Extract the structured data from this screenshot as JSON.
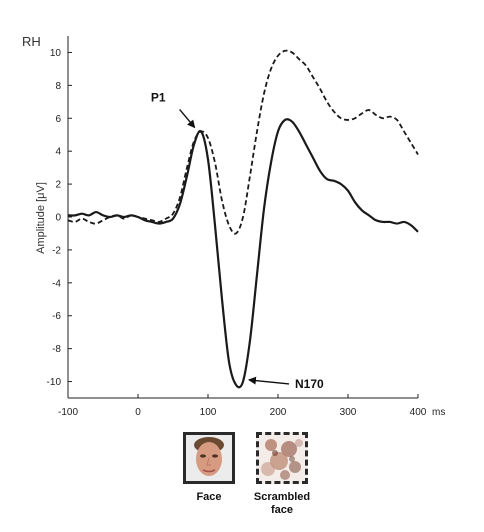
{
  "chart_data": {
    "type": "line",
    "hemisphere_label": "RH",
    "ylabel": "Amplitude [μV]",
    "x_unit": "ms",
    "xlim": [
      -100,
      400
    ],
    "ylim": [
      -11,
      11
    ],
    "x_ticks": [
      -100,
      0,
      100,
      200,
      300,
      400
    ],
    "x_tick_labels": [
      "-100",
      "0",
      "100",
      "200",
      "300",
      "400"
    ],
    "y_ticks": [
      -10,
      -8,
      -6,
      -4,
      -2,
      0,
      2,
      4,
      6,
      8,
      10
    ],
    "y_tick_labels": [
      "-10",
      "-8",
      "-6",
      "-4",
      "-2",
      "0",
      "2",
      "4",
      "6",
      "8",
      "10"
    ],
    "grid": false,
    "series": [
      {
        "name": "Face",
        "style": "solid",
        "color": "#1a1a1a",
        "points": [
          [
            -100,
            0.1
          ],
          [
            -90,
            0.1
          ],
          [
            -80,
            0.2
          ],
          [
            -70,
            0.1
          ],
          [
            -60,
            0.3
          ],
          [
            -50,
            0.1
          ],
          [
            -40,
            0.0
          ],
          [
            -30,
            0.1
          ],
          [
            -20,
            0.0
          ],
          [
            -10,
            0.1
          ],
          [
            0,
            0.0
          ],
          [
            10,
            -0.2
          ],
          [
            20,
            -0.3
          ],
          [
            30,
            -0.4
          ],
          [
            40,
            -0.3
          ],
          [
            50,
            -0.1
          ],
          [
            60,
            0.8
          ],
          [
            70,
            2.5
          ],
          [
            80,
            4.4
          ],
          [
            90,
            5.2
          ],
          [
            100,
            3.5
          ],
          [
            110,
            -0.5
          ],
          [
            120,
            -5.0
          ],
          [
            130,
            -8.8
          ],
          [
            140,
            -10.2
          ],
          [
            150,
            -10.0
          ],
          [
            160,
            -7.5
          ],
          [
            170,
            -3.5
          ],
          [
            180,
            0.5
          ],
          [
            190,
            3.3
          ],
          [
            200,
            5.2
          ],
          [
            210,
            5.9
          ],
          [
            220,
            5.8
          ],
          [
            230,
            5.2
          ],
          [
            240,
            4.4
          ],
          [
            250,
            3.6
          ],
          [
            260,
            2.8
          ],
          [
            270,
            2.3
          ],
          [
            280,
            2.2
          ],
          [
            290,
            2.0
          ],
          [
            300,
            1.6
          ],
          [
            310,
            0.9
          ],
          [
            320,
            0.4
          ],
          [
            330,
            0.1
          ],
          [
            340,
            -0.2
          ],
          [
            350,
            -0.3
          ],
          [
            360,
            -0.3
          ],
          [
            370,
            -0.4
          ],
          [
            380,
            -0.3
          ],
          [
            390,
            -0.5
          ],
          [
            400,
            -0.9
          ]
        ]
      },
      {
        "name": "Scrambled face",
        "style": "dashed",
        "color": "#1a1a1a",
        "points": [
          [
            -100,
            -0.2
          ],
          [
            -90,
            -0.3
          ],
          [
            -80,
            -0.1
          ],
          [
            -70,
            -0.3
          ],
          [
            -60,
            -0.4
          ],
          [
            -50,
            -0.2
          ],
          [
            -40,
            0.0
          ],
          [
            -30,
            0.1
          ],
          [
            -20,
            -0.1
          ],
          [
            -10,
            0.1
          ],
          [
            0,
            0.0
          ],
          [
            10,
            -0.1
          ],
          [
            20,
            -0.2
          ],
          [
            30,
            -0.3
          ],
          [
            40,
            -0.1
          ],
          [
            50,
            0.2
          ],
          [
            60,
            1.2
          ],
          [
            70,
            3.0
          ],
          [
            80,
            4.6
          ],
          [
            90,
            5.2
          ],
          [
            100,
            4.8
          ],
          [
            110,
            3.3
          ],
          [
            120,
            1.0
          ],
          [
            130,
            -0.5
          ],
          [
            140,
            -1.0
          ],
          [
            150,
            0.0
          ],
          [
            160,
            2.5
          ],
          [
            170,
            5.2
          ],
          [
            180,
            7.5
          ],
          [
            190,
            9.0
          ],
          [
            200,
            9.8
          ],
          [
            210,
            10.1
          ],
          [
            220,
            10.0
          ],
          [
            230,
            9.6
          ],
          [
            240,
            9.2
          ],
          [
            250,
            8.5
          ],
          [
            260,
            7.8
          ],
          [
            270,
            7.0
          ],
          [
            280,
            6.4
          ],
          [
            290,
            6.0
          ],
          [
            300,
            5.9
          ],
          [
            310,
            6.0
          ],
          [
            320,
            6.3
          ],
          [
            330,
            6.5
          ],
          [
            340,
            6.2
          ],
          [
            350,
            6.0
          ],
          [
            360,
            6.1
          ],
          [
            370,
            5.9
          ],
          [
            380,
            5.2
          ],
          [
            390,
            4.5
          ],
          [
            400,
            3.8
          ]
        ]
      }
    ],
    "annotations": [
      {
        "text": "P1",
        "target": [
          88,
          5.2
        ]
      },
      {
        "text": "N170",
        "target": [
          150,
          -9.9
        ]
      }
    ]
  },
  "legend": {
    "items": [
      {
        "label_lines": [
          "Face"
        ],
        "icon": "face-photo",
        "border": "solid"
      },
      {
        "label_lines": [
          "Scrambled",
          "face"
        ],
        "icon": "scrambled-face-photo",
        "border": "dashed"
      }
    ]
  }
}
